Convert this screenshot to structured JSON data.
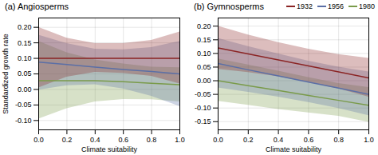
{
  "chart_data": [
    {
      "type": "line",
      "title": "(a) Angiosperms",
      "xlabel": "Climate suitability",
      "ylabel": "Standardized growth rate",
      "x": [
        0.0,
        0.2,
        0.4,
        0.6,
        0.8,
        1.0
      ],
      "xlim": [
        0.0,
        1.0
      ],
      "xticks": [
        {
          "value": 0.0,
          "label": "0.0"
        },
        0.2,
        0.4,
        0.6,
        0.8,
        {
          "value": 1.0,
          "label": "1.0"
        }
      ],
      "ylim": [
        -0.13,
        0.23
      ],
      "yticks": [
        {
          "value": -0.1,
          "label": "-0.10"
        },
        -0.05,
        {
          "value": 0.0,
          "label": "0.00"
        },
        0.05,
        {
          "value": 0.1,
          "label": "0.10"
        },
        0.15,
        {
          "value": 0.2,
          "label": "0.20"
        }
      ],
      "grid": true,
      "series": [
        {
          "name": "1932",
          "color": "#8B2525",
          "values": [
            0.1,
            0.1,
            0.1,
            0.1,
            0.1,
            0.1
          ],
          "upper": [
            0.2,
            0.165,
            0.148,
            0.148,
            0.158,
            0.185
          ],
          "lower": [
            0.005,
            0.04,
            0.055,
            0.052,
            0.042,
            0.018
          ]
        },
        {
          "name": "1956",
          "color": "#5B6FA6",
          "values": [
            0.088,
            0.08,
            0.072,
            0.064,
            0.058,
            0.05
          ],
          "upper": [
            0.175,
            0.148,
            0.13,
            0.128,
            0.135,
            0.155
          ],
          "lower": [
            -0.002,
            0.012,
            0.015,
            0.002,
            -0.022,
            -0.055
          ]
        },
        {
          "name": "1980",
          "color": "#7A9B4A",
          "values": [
            0.028,
            0.028,
            0.028,
            0.025,
            0.02,
            0.015
          ],
          "upper": [
            0.155,
            0.118,
            0.095,
            0.082,
            0.072,
            0.07
          ],
          "lower": [
            -0.095,
            -0.062,
            -0.04,
            -0.032,
            -0.033,
            -0.04
          ]
        }
      ]
    },
    {
      "type": "line",
      "title": "(b) Gymnosperms",
      "xlabel": "Climate suitability",
      "x": [
        0.0,
        0.2,
        0.4,
        0.6,
        0.8,
        1.0
      ],
      "xlim": [
        0.0,
        1.0
      ],
      "xticks": [
        {
          "value": 0.0,
          "label": "0.0"
        },
        0.2,
        0.4,
        0.6,
        0.8,
        {
          "value": 1.0,
          "label": "1.0"
        }
      ],
      "ylim": [
        -0.18,
        0.23
      ],
      "yticks": [
        -0.15,
        {
          "value": -0.1,
          "label": "-0.10"
        },
        -0.05,
        {
          "value": 0.0,
          "label": "0.00"
        },
        0.05,
        {
          "value": 0.1,
          "label": "0.10"
        },
        0.15,
        {
          "value": 0.2,
          "label": "0.20"
        }
      ],
      "grid": true,
      "legend": "upper right",
      "series": [
        {
          "name": "1932",
          "color": "#8B2525",
          "values": [
            0.12,
            0.098,
            0.076,
            0.054,
            0.032,
            0.01
          ],
          "upper": [
            0.2,
            0.168,
            0.14,
            0.116,
            0.096,
            0.082
          ],
          "lower": [
            0.042,
            0.03,
            0.015,
            -0.005,
            -0.03,
            -0.06
          ]
        },
        {
          "name": "1956",
          "color": "#5B6FA6",
          "values": [
            0.063,
            0.04,
            0.018,
            -0.005,
            -0.027,
            -0.05
          ],
          "upper": [
            0.155,
            0.125,
            0.098,
            0.072,
            0.05,
            0.032
          ],
          "lower": [
            -0.026,
            -0.042,
            -0.06,
            -0.08,
            -0.102,
            -0.128
          ]
        },
        {
          "name": "1980",
          "color": "#7A9B4A",
          "values": [
            0.0,
            -0.018,
            -0.036,
            -0.054,
            -0.072,
            -0.09
          ],
          "upper": [
            0.08,
            0.058,
            0.035,
            0.012,
            -0.01,
            -0.025
          ],
          "lower": [
            -0.075,
            -0.09,
            -0.105,
            -0.118,
            -0.13,
            -0.152
          ]
        }
      ]
    }
  ]
}
